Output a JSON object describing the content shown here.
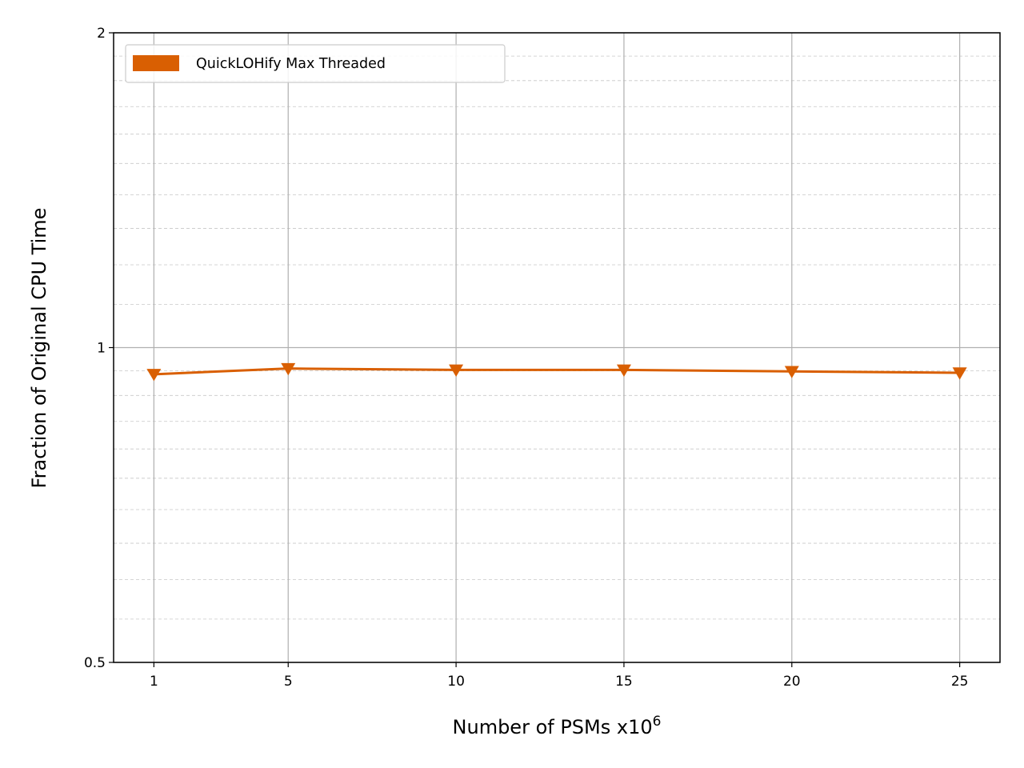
{
  "chart_data": {
    "type": "line",
    "title": "",
    "xlabel": "Number of PSMs x10",
    "xlabel_superscript": "6",
    "ylabel": "Fraction of Original CPU Time",
    "x": [
      1,
      5,
      10,
      15,
      20,
      25
    ],
    "x_tick_labels": [
      "1",
      "5",
      "10",
      "15",
      "20",
      "25"
    ],
    "xlim": [
      -0.2,
      26.2
    ],
    "y_scale": "log2",
    "ylim": [
      0.5,
      2
    ],
    "y_ticks": [
      0.5,
      1,
      2
    ],
    "y_tick_labels": [
      "0.5",
      "1",
      "2"
    ],
    "grid": true,
    "legend_position": "top-left",
    "series": [
      {
        "name": "QuickLOHify Max Threaded",
        "color": "#d95f02",
        "marker": "triangle-down",
        "values": [
          0.943,
          0.955,
          0.952,
          0.952,
          0.949,
          0.946
        ]
      }
    ]
  }
}
